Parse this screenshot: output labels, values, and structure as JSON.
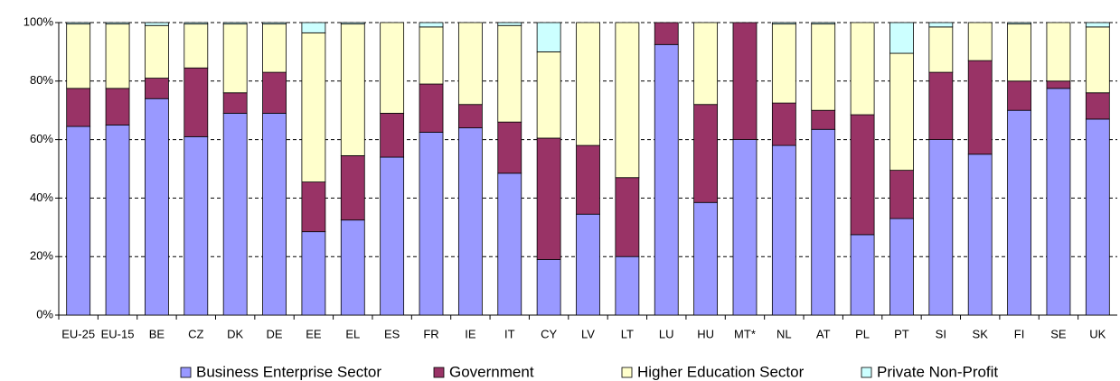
{
  "chart_data": {
    "type": "stacked_bar",
    "categories": [
      "EU-25",
      "EU-15",
      "BE",
      "CZ",
      "DK",
      "DE",
      "EE",
      "EL",
      "ES",
      "FR",
      "IE",
      "IT",
      "CY",
      "LV",
      "LT",
      "LU",
      "HU",
      "MT*",
      "NL",
      "AT",
      "PL",
      "PT",
      "SI",
      "SK",
      "FI",
      "SE",
      "UK"
    ],
    "series": [
      {
        "name": "Business Enterprise Sector",
        "color": "#9999ff",
        "values": [
          64.5,
          65,
          74,
          61,
          69,
          69,
          28.5,
          32.5,
          54,
          62.5,
          64,
          48.5,
          19,
          34.5,
          20,
          92.5,
          38.5,
          60,
          58,
          63.5,
          27.5,
          33,
          60,
          55,
          70,
          77.5,
          67
        ]
      },
      {
        "name": "Government",
        "color": "#993366",
        "values": [
          13,
          12.5,
          7,
          23.5,
          7,
          14,
          17,
          22,
          15,
          16.5,
          8,
          17.5,
          41.5,
          23.5,
          27,
          7.5,
          33.5,
          40,
          14.5,
          6.5,
          41,
          16.5,
          23,
          32,
          10,
          2.5,
          9
        ]
      },
      {
        "name": "Higher Education Sector",
        "color": "#ffffcc",
        "values": [
          22,
          22,
          18,
          15,
          23.5,
          16.5,
          51,
          45,
          31,
          19.5,
          28,
          33,
          29.5,
          42,
          53,
          0,
          28,
          0,
          27,
          29.5,
          31.5,
          40,
          15.5,
          13,
          19.5,
          20,
          22.5
        ]
      },
      {
        "name": "Private Non-Profit",
        "color": "#ccffff",
        "values": [
          0.5,
          0.5,
          1,
          0.5,
          0.5,
          0.5,
          3.5,
          0.5,
          0,
          1.5,
          0,
          1,
          10,
          0,
          0,
          0,
          0,
          0,
          0.5,
          0.5,
          0,
          10.5,
          1.5,
          0,
          0.5,
          0,
          1.5
        ]
      }
    ],
    "ylim": [
      0,
      100
    ],
    "yticks": [
      {
        "value": 0,
        "label": "0%"
      },
      {
        "value": 20,
        "label": "20%"
      },
      {
        "value": 40,
        "label": "40%"
      },
      {
        "value": 60,
        "label": "60%"
      },
      {
        "value": 80,
        "label": "80%"
      },
      {
        "value": 100,
        "label": "100%"
      }
    ],
    "grid": true,
    "legend": "bottom"
  }
}
